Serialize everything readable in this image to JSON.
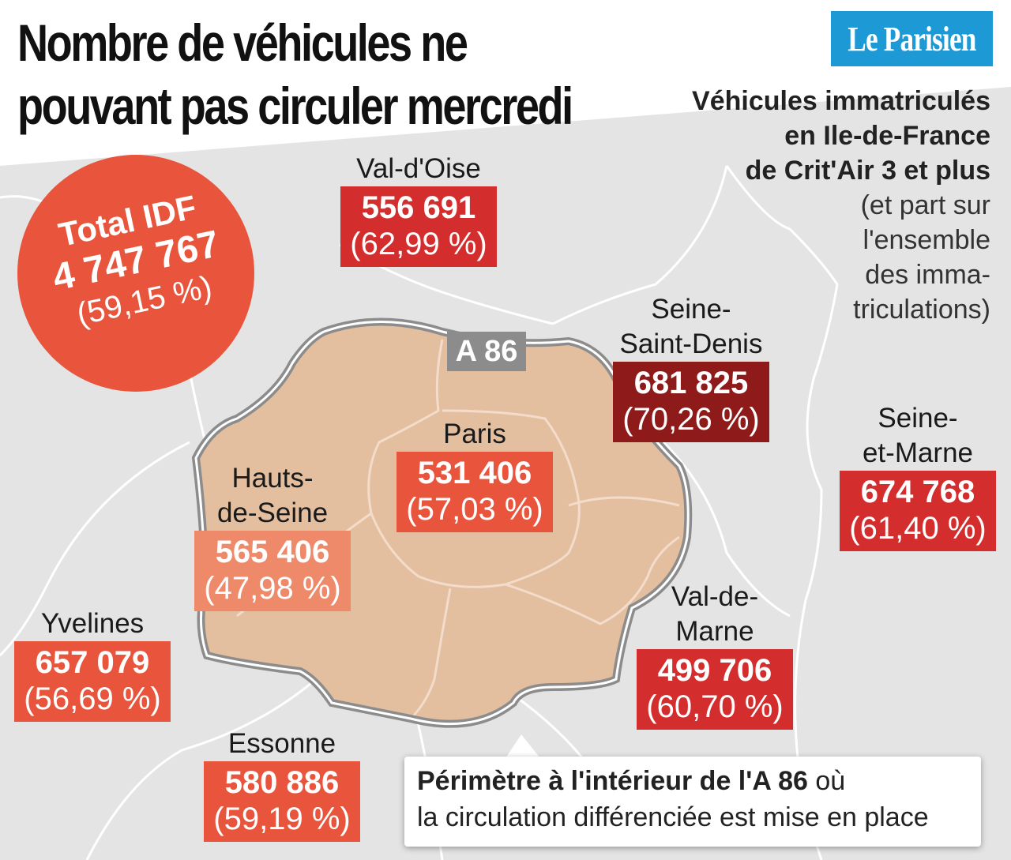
{
  "title": "Nombre de véhicules ne pouvant pas circuler mercredi",
  "logo": "Le Parisien",
  "legend": {
    "line1": "Véhicules immatriculés",
    "line2": "en Ile-de-France",
    "line3": "de Crit'Air 3 et plus",
    "line4": "(et part sur",
    "line5": "l'ensemble",
    "line6": "des imma-",
    "line7": "triculations)"
  },
  "total": {
    "label": "Total IDF",
    "value": "4 747 767",
    "pct": "(59,15 %)"
  },
  "road_label": "A 86",
  "caption": {
    "bold": "Périmètre à l'intérieur de l'A 86",
    "rest1": " où",
    "rest2": "la circulation différenciée est mise en place"
  },
  "departments": {
    "val_doise": {
      "name": "Val-d'Oise",
      "value": "556 691",
      "pct": "(62,99 %)"
    },
    "seine_saint_denis": {
      "name1": "Seine-",
      "name2": "Saint-Denis",
      "value": "681 825",
      "pct": "(70,26 %)"
    },
    "paris": {
      "name": "Paris",
      "value": "531 406",
      "pct": "(57,03 %)"
    },
    "hauts_de_seine": {
      "name1": "Hauts-",
      "name2": "de-Seine",
      "value": "565 406",
      "pct": "(47,98 %)"
    },
    "seine_et_marne": {
      "name1": "Seine-",
      "name2": "et-Marne",
      "value": "674 768",
      "pct": "(61,40 %)"
    },
    "val_de_marne": {
      "name1": "Val-de-",
      "name2": "Marne",
      "value": "499 706",
      "pct": "(60,70 %)"
    },
    "yvelines": {
      "name": "Yvelines",
      "value": "657 079",
      "pct": "(56,69 %)"
    },
    "essonne": {
      "name": "Essonne",
      "value": "580 886",
      "pct": "(59,19 %)"
    }
  },
  "colors": {
    "background_map": "#e4e4e4",
    "inner_zone": "#e3bf9f",
    "a86_ring": "#8c8c8c",
    "dark_red": "#8e1a1a",
    "red": "#d42d2d",
    "orange_red": "#e8553c",
    "salmon": "#ee8a6a"
  }
}
